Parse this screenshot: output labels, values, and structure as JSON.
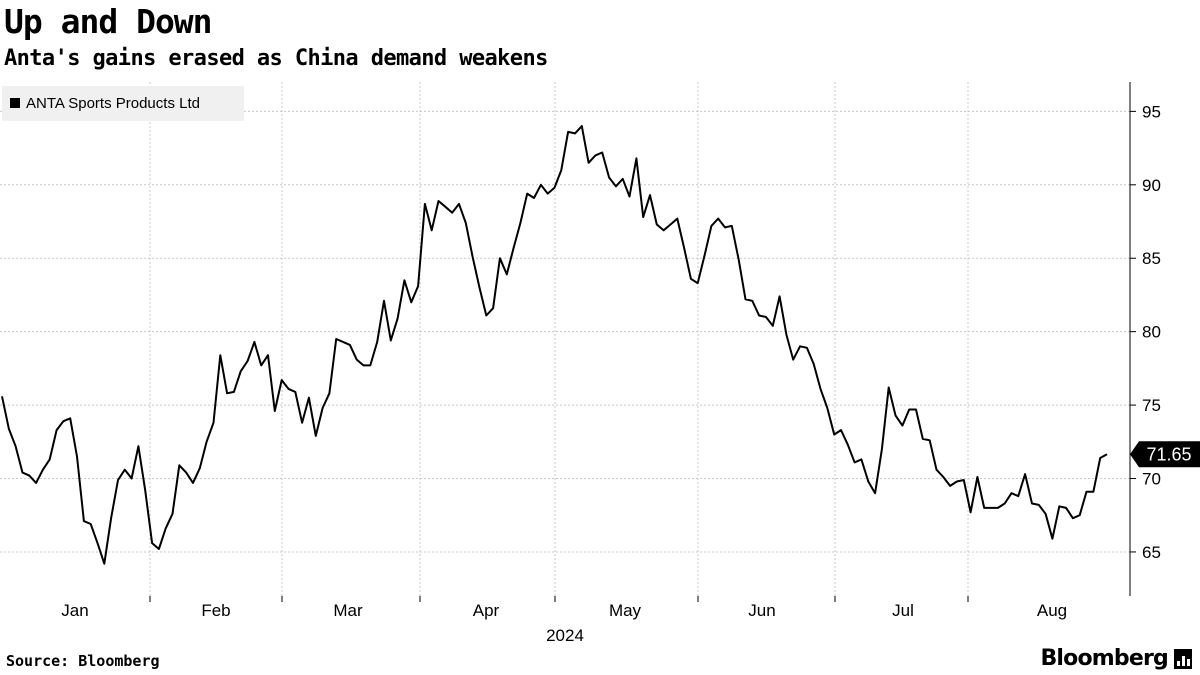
{
  "header": {
    "title": "Up and Down",
    "subtitle": "Anta's gains erased as China demand weakens"
  },
  "footer": {
    "source": "Source: Bloomberg",
    "brand": "Bloomberg"
  },
  "colors": {
    "line": "#000000",
    "grid": "#c8c8c8",
    "legend_bg": "#f0f0f0",
    "label_bg": "#000000",
    "label_text": "#ffffff"
  },
  "chart_data": {
    "type": "line",
    "title": "Up and Down",
    "subtitle": "Anta's gains erased as China demand weakens",
    "xlabel": "2024",
    "ylabel": "",
    "ylim": [
      62,
      97
    ],
    "y_ticks": [
      65,
      70,
      75,
      80,
      85,
      90,
      95
    ],
    "x_ticks": [
      "Jan",
      "Feb",
      "Mar",
      "Apr",
      "May",
      "Jun",
      "Jul",
      "Aug"
    ],
    "year_label": "2024",
    "legend_position": "top-left",
    "legend": [
      "ANTA Sports Products Ltd"
    ],
    "last_value_label": "71.65",
    "grid": true,
    "series": [
      {
        "name": "ANTA Sports Products Ltd",
        "values": [
          75.6,
          73.4,
          72.2,
          70.4,
          70.2,
          69.7,
          70.6,
          71.3,
          73.3,
          73.9,
          74.1,
          71.5,
          67.1,
          66.9,
          65.6,
          64.2,
          67.3,
          69.9,
          70.6,
          70,
          72.2,
          69.2,
          65.6,
          65.2,
          66.6,
          67.6,
          70.9,
          70.4,
          69.7,
          70.7,
          72.5,
          73.8,
          78.4,
          75.8,
          75.9,
          77.3,
          78,
          79.3,
          77.7,
          78.4,
          74.6,
          76.7,
          76.1,
          75.9,
          73.8,
          75.5,
          72.9,
          74.8,
          75.8,
          79.5,
          79.3,
          79.1,
          78.1,
          77.7,
          77.7,
          79.3,
          82.1,
          79.4,
          80.9,
          83.5,
          82,
          83.1,
          88.7,
          86.9,
          88.9,
          88.5,
          88.1,
          88.7,
          87.4,
          85.1,
          83,
          81.1,
          81.6,
          85,
          83.9,
          85.7,
          87.4,
          89.4,
          89.1,
          90,
          89.4,
          89.8,
          91,
          93.6,
          93.5,
          94,
          91.5,
          92,
          92.2,
          90.5,
          89.9,
          90.4,
          89.2,
          91.8,
          87.8,
          89.3,
          87.3,
          86.9,
          87.3,
          87.7,
          85.7,
          83.6,
          83.3,
          85.2,
          87.2,
          87.7,
          87.1,
          87.2,
          84.9,
          82.2,
          82.1,
          81.1,
          81,
          80.4,
          82.4,
          79.8,
          78.1,
          79,
          78.9,
          77.8,
          76.1,
          74.8,
          73,
          73.3,
          72.3,
          71.1,
          71.3,
          69.8,
          69,
          72,
          76.2,
          74.3,
          73.6,
          74.7,
          74.7,
          72.7,
          72.6,
          70.6,
          70.1,
          69.5,
          69.8,
          69.9,
          67.7,
          70.1,
          68,
          68,
          68,
          68.3,
          69,
          68.8,
          70.3,
          68.3,
          68.2,
          67.6,
          65.9,
          68.1,
          68,
          67.3,
          67.5,
          69.1,
          69.1,
          71.4,
          71.65
        ]
      }
    ]
  }
}
